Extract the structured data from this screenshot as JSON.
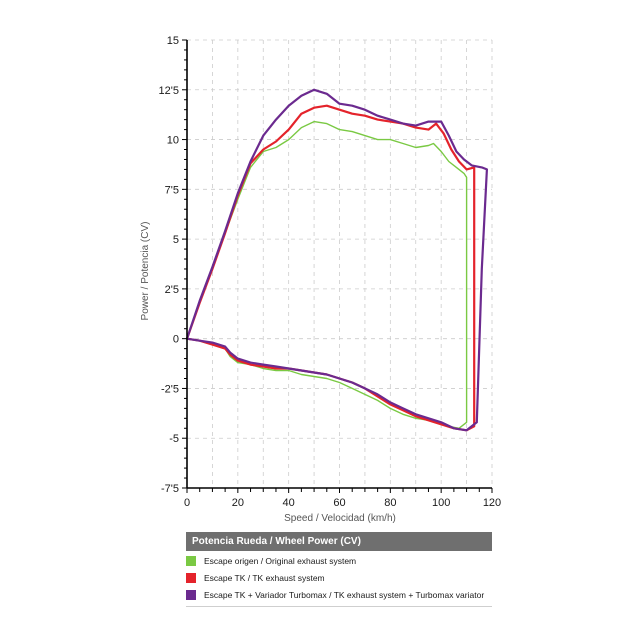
{
  "colors": {
    "original": "#7ac943",
    "tk": "#e4232b",
    "turbomax": "#6b2a8f",
    "grid": "#cccccc",
    "axis": "#000000",
    "legend_header_bg": "#6f6f6f"
  },
  "chart_data": {
    "type": "line",
    "title": "",
    "xlabel": "Speed / Velocidad (km/h)",
    "ylabel": "Power / Potencia (CV)",
    "xlim": [
      0,
      120
    ],
    "ylim": [
      -7.5,
      15
    ],
    "x_ticks": [
      0,
      20,
      40,
      60,
      80,
      100,
      120
    ],
    "x_tick_labels": [
      "0",
      "20",
      "40",
      "60",
      "80",
      "100",
      "120"
    ],
    "y_ticks": [
      -7.5,
      -5,
      -2.5,
      0,
      2.5,
      5,
      7.5,
      10,
      12.5,
      15
    ],
    "y_tick_labels": [
      "-7'5",
      "-5",
      "-2'5",
      "0",
      "2'5",
      "5",
      "7'5",
      "10",
      "12'5",
      "15"
    ],
    "grid": true,
    "series": [
      {
        "name": "Escape origen / Original exhaust system",
        "color_key": "original",
        "points": [
          [
            0,
            0
          ],
          [
            5,
            1.8
          ],
          [
            10,
            3.5
          ],
          [
            15,
            5.3
          ],
          [
            20,
            7.0
          ],
          [
            25,
            8.6
          ],
          [
            30,
            9.4
          ],
          [
            35,
            9.6
          ],
          [
            40,
            10.0
          ],
          [
            45,
            10.6
          ],
          [
            50,
            10.9
          ],
          [
            55,
            10.8
          ],
          [
            60,
            10.5
          ],
          [
            65,
            10.4
          ],
          [
            70,
            10.2
          ],
          [
            75,
            10.0
          ],
          [
            80,
            10.0
          ],
          [
            85,
            9.8
          ],
          [
            90,
            9.6
          ],
          [
            95,
            9.7
          ],
          [
            97,
            9.8
          ],
          [
            100,
            9.4
          ],
          [
            103,
            8.9
          ],
          [
            106,
            8.6
          ],
          [
            109,
            8.3
          ],
          [
            110,
            8.1
          ],
          [
            110,
            -4.2
          ],
          [
            107,
            -4.5
          ],
          [
            103,
            -4.4
          ],
          [
            100,
            -4.2
          ],
          [
            95,
            -4.1
          ],
          [
            90,
            -4.0
          ],
          [
            85,
            -3.8
          ],
          [
            80,
            -3.5
          ],
          [
            75,
            -3.1
          ],
          [
            70,
            -2.8
          ],
          [
            65,
            -2.5
          ],
          [
            60,
            -2.2
          ],
          [
            55,
            -2.0
          ],
          [
            50,
            -1.9
          ],
          [
            45,
            -1.8
          ],
          [
            40,
            -1.6
          ],
          [
            35,
            -1.6
          ],
          [
            30,
            -1.5
          ],
          [
            25,
            -1.3
          ],
          [
            20,
            -1.2
          ],
          [
            17,
            -0.9
          ],
          [
            15,
            -0.5
          ],
          [
            10,
            -0.3
          ],
          [
            5,
            -0.1
          ],
          [
            0,
            0
          ]
        ]
      },
      {
        "name": "Escape TK / TK exhaust  system",
        "color_key": "tk",
        "points": [
          [
            0,
            0
          ],
          [
            5,
            1.8
          ],
          [
            10,
            3.5
          ],
          [
            15,
            5.3
          ],
          [
            20,
            7.2
          ],
          [
            25,
            8.8
          ],
          [
            30,
            9.5
          ],
          [
            35,
            9.9
          ],
          [
            40,
            10.5
          ],
          [
            45,
            11.3
          ],
          [
            50,
            11.6
          ],
          [
            55,
            11.7
          ],
          [
            60,
            11.5
          ],
          [
            65,
            11.3
          ],
          [
            70,
            11.2
          ],
          [
            75,
            11.0
          ],
          [
            80,
            10.9
          ],
          [
            85,
            10.8
          ],
          [
            90,
            10.6
          ],
          [
            95,
            10.5
          ],
          [
            98,
            10.8
          ],
          [
            101,
            10.3
          ],
          [
            104,
            9.5
          ],
          [
            107,
            8.9
          ],
          [
            110,
            8.5
          ],
          [
            113,
            8.6
          ],
          [
            113,
            -4.4
          ],
          [
            110,
            -4.6
          ],
          [
            105,
            -4.5
          ],
          [
            100,
            -4.3
          ],
          [
            95,
            -4.1
          ],
          [
            90,
            -3.9
          ],
          [
            85,
            -3.6
          ],
          [
            80,
            -3.3
          ],
          [
            75,
            -2.9
          ],
          [
            70,
            -2.5
          ],
          [
            65,
            -2.2
          ],
          [
            60,
            -2.0
          ],
          [
            55,
            -1.8
          ],
          [
            50,
            -1.7
          ],
          [
            45,
            -1.6
          ],
          [
            40,
            -1.5
          ],
          [
            35,
            -1.5
          ],
          [
            30,
            -1.4
          ],
          [
            25,
            -1.3
          ],
          [
            20,
            -1.1
          ],
          [
            17,
            -0.8
          ],
          [
            15,
            -0.5
          ],
          [
            10,
            -0.3
          ],
          [
            5,
            -0.1
          ],
          [
            0,
            0
          ]
        ]
      },
      {
        "name": "Escape TK + Variador Turbomax  / TK exhaust  system + Turbomax variator",
        "color_key": "turbomax",
        "points": [
          [
            0,
            0
          ],
          [
            5,
            1.9
          ],
          [
            10,
            3.6
          ],
          [
            15,
            5.4
          ],
          [
            20,
            7.3
          ],
          [
            25,
            8.9
          ],
          [
            30,
            10.2
          ],
          [
            35,
            11.0
          ],
          [
            40,
            11.7
          ],
          [
            45,
            12.2
          ],
          [
            50,
            12.5
          ],
          [
            55,
            12.3
          ],
          [
            60,
            11.8
          ],
          [
            65,
            11.7
          ],
          [
            70,
            11.5
          ],
          [
            75,
            11.2
          ],
          [
            80,
            11.0
          ],
          [
            85,
            10.8
          ],
          [
            90,
            10.7
          ],
          [
            95,
            10.9
          ],
          [
            100,
            10.9
          ],
          [
            103,
            10.2
          ],
          [
            106,
            9.4
          ],
          [
            109,
            9.0
          ],
          [
            112,
            8.7
          ],
          [
            116,
            8.6
          ],
          [
            118,
            8.5
          ],
          [
            116,
            3.5
          ],
          [
            114,
            -4.2
          ],
          [
            110,
            -4.6
          ],
          [
            105,
            -4.5
          ],
          [
            100,
            -4.2
          ],
          [
            95,
            -4.0
          ],
          [
            90,
            -3.8
          ],
          [
            85,
            -3.5
          ],
          [
            80,
            -3.2
          ],
          [
            75,
            -2.8
          ],
          [
            70,
            -2.5
          ],
          [
            65,
            -2.2
          ],
          [
            60,
            -2.0
          ],
          [
            55,
            -1.8
          ],
          [
            50,
            -1.7
          ],
          [
            45,
            -1.6
          ],
          [
            40,
            -1.5
          ],
          [
            35,
            -1.4
          ],
          [
            30,
            -1.3
          ],
          [
            25,
            -1.2
          ],
          [
            20,
            -1.0
          ],
          [
            17,
            -0.7
          ],
          [
            15,
            -0.4
          ],
          [
            10,
            -0.2
          ],
          [
            5,
            -0.1
          ],
          [
            0,
            0
          ]
        ]
      }
    ]
  },
  "legend": {
    "header": "Potencia Rueda / Wheel Power (CV)",
    "items": [
      {
        "label": "Escape origen / Original exhaust system",
        "color_key": "original"
      },
      {
        "label": "Escape TK / TK exhaust  system",
        "color_key": "tk"
      },
      {
        "label": "Escape TK + Variador Turbomax  / TK exhaust  system + Turbomax variator",
        "color_key": "turbomax"
      }
    ]
  }
}
